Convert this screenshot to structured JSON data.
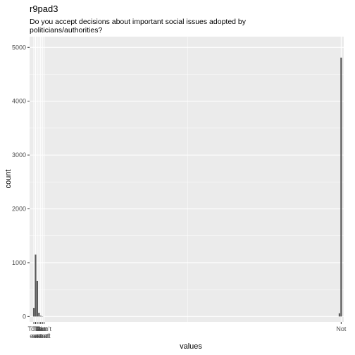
{
  "chart_data": {
    "type": "bar",
    "title": "r9pad3",
    "subtitle_lines": [
      "Do you accept decisions about important social issues adopted by",
      "politicians/authorities?"
    ],
    "xlabel": "values",
    "ylabel": "count",
    "ylim": [
      0,
      5000
    ],
    "yticks": [
      0,
      1000,
      2000,
      3000,
      4000,
      5000
    ],
    "grid": true,
    "background": "#ebebeb",
    "bar_color": "#595959",
    "x_ticks": [
      {
        "label": "To a",
        "x": 0
      },
      {
        "label": "To",
        "x": 1
      },
      {
        "label": "To",
        "x": 2
      },
      {
        "label": "To",
        "x": 3
      },
      {
        "label": "Not",
        "x": 4
      },
      {
        "label": "Not",
        "x": 5
      },
      {
        "label": "Don't",
        "x": 6
      },
      {
        "label": "Not",
        "x": 180
      }
    ],
    "x_tick_lines2": [
      "a",
      "extent",
      "extent",
      "extent",
      "at all"
    ],
    "bars": [
      {
        "x": 0,
        "value": 160
      },
      {
        "x": 1,
        "value": 1150
      },
      {
        "x": 2,
        "value": 660
      },
      {
        "x": 3,
        "value": 70
      },
      {
        "x": 4,
        "value": 15
      },
      {
        "x": 5,
        "value": 5
      },
      {
        "x": 179,
        "value": 60
      },
      {
        "x": 180,
        "value": 4810
      }
    ],
    "xlim": [
      -2.5,
      181.5
    ]
  }
}
